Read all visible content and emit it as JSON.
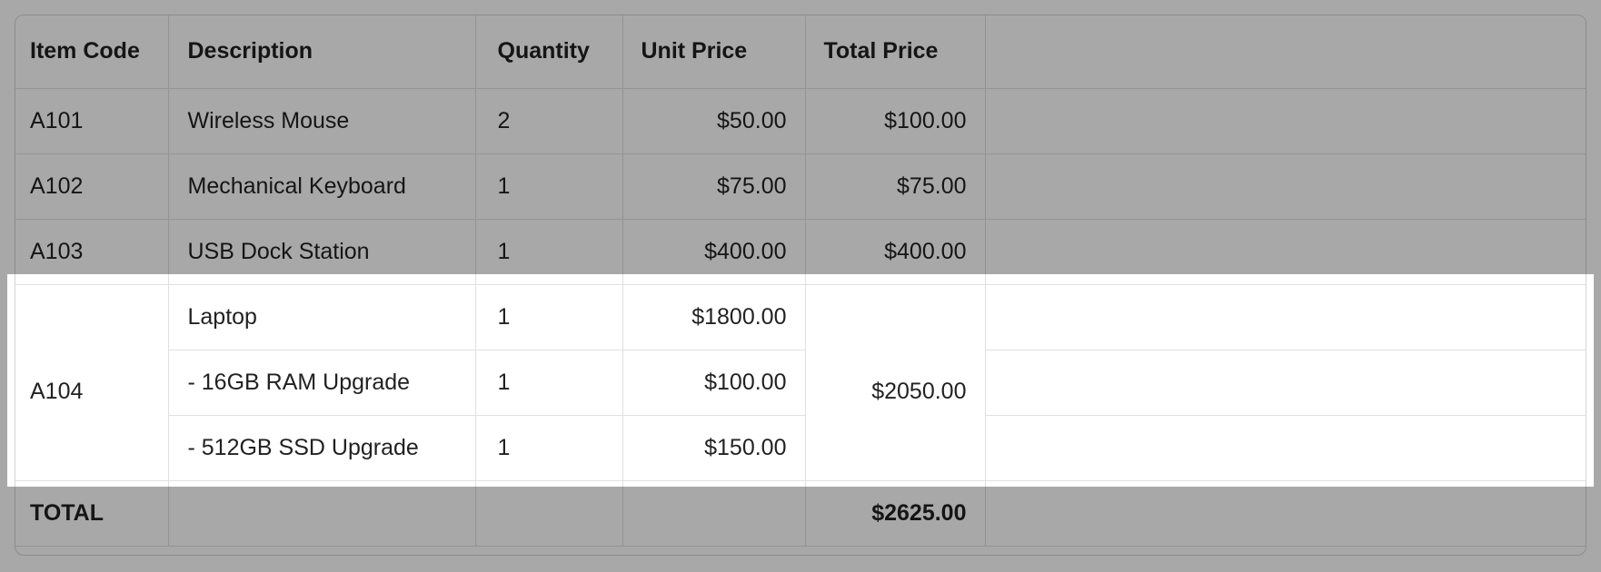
{
  "colors": {
    "dim_overlay": "rgba(0,0,0,0.34)",
    "dim_overlay_effective_gray": "#ababab",
    "cell_border": "#e0e0e0",
    "container_border": "#d5d5d5",
    "text": "#1f1f1f",
    "highlight_background": "#ffffff"
  },
  "table": {
    "columns": [
      {
        "label": "Item Code",
        "align": "left"
      },
      {
        "label": "Description",
        "align": "left"
      },
      {
        "label": "Quantity",
        "align": "left"
      },
      {
        "label": "Unit Price",
        "align": "right"
      },
      {
        "label": "Total Price",
        "align": "right"
      },
      {
        "label": "",
        "align": "left"
      }
    ],
    "rows": [
      {
        "code": "A101",
        "desc": "Wireless Mouse",
        "qty": "2",
        "unit": "$50.00",
        "total": "$100.00"
      },
      {
        "code": "A102",
        "desc": "Mechanical Keyboard",
        "qty": "1",
        "unit": "$75.00",
        "total": "$75.00"
      },
      {
        "code": "A103",
        "desc": "USB Dock Station",
        "qty": "1",
        "unit": "$400.00",
        "total": "$400.00"
      },
      {
        "code": "A104",
        "desc": "Laptop",
        "qty": "1",
        "unit": "$1800.00",
        "total": "$2050.00"
      },
      {
        "code": "",
        "desc": "- 16GB RAM Upgrade",
        "qty": "1",
        "unit": "$100.00",
        "total": ""
      },
      {
        "code": "",
        "desc": "- 512GB SSD Upgrade",
        "qty": "1",
        "unit": "$150.00",
        "total": ""
      }
    ],
    "total_row": {
      "label": "TOTAL",
      "desc": "",
      "qty": "",
      "unit": "",
      "total": "$2625.00"
    }
  }
}
